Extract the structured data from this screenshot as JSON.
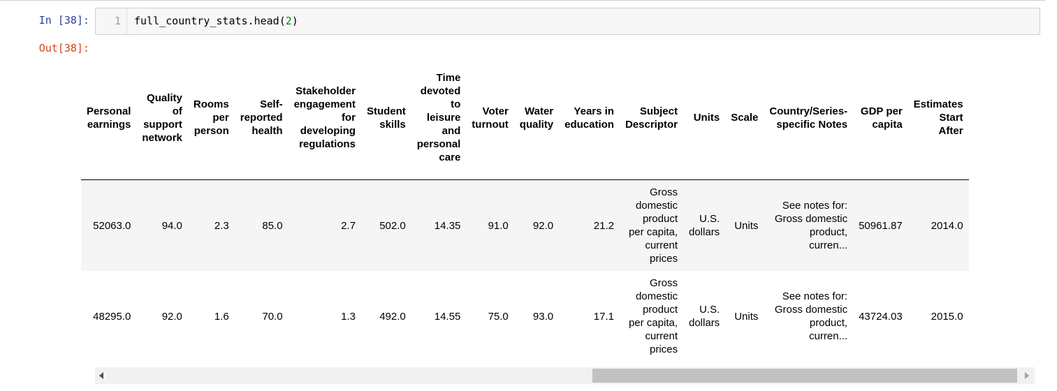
{
  "cell": {
    "in_prompt": "In [38]:",
    "out_prompt": "Out[38]:",
    "line_number": "1",
    "code": {
      "prefix": "full_country_stats.head",
      "open": "(",
      "arg": "2",
      "close": ")"
    }
  },
  "table": {
    "columns": [
      [
        "Personal",
        "earnings"
      ],
      [
        "Quality",
        "of",
        "support",
        "network"
      ],
      [
        "Rooms",
        "per",
        "person"
      ],
      [
        "Self-",
        "reported",
        "health"
      ],
      [
        "Stakeholder",
        "engagement",
        "for",
        "developing",
        "regulations"
      ],
      [
        "Student",
        "skills"
      ],
      [
        "Time",
        "devoted",
        "to",
        "leisure",
        "and",
        "personal",
        "care"
      ],
      [
        "Voter",
        "turnout"
      ],
      [
        "Water",
        "quality"
      ],
      [
        "Years in",
        "education"
      ],
      [
        "Subject",
        "Descriptor"
      ],
      [
        "Units"
      ],
      [
        "Scale"
      ],
      [
        "Country/Series-",
        "specific Notes"
      ],
      [
        "GDP per",
        "capita"
      ],
      [
        "Estimates",
        "Start",
        "After"
      ]
    ],
    "rows": [
      [
        "52063.0",
        "94.0",
        "2.3",
        "85.0",
        "2.7",
        "502.0",
        "14.35",
        "91.0",
        "92.0",
        "21.2",
        [
          "Gross",
          "domestic",
          "product",
          "per capita,",
          "current",
          "prices"
        ],
        [
          "U.S.",
          "dollars"
        ],
        "Units",
        [
          "See notes for:",
          "Gross domestic",
          "product,",
          "curren..."
        ],
        "50961.87",
        "2014.0"
      ],
      [
        "48295.0",
        "92.0",
        "1.6",
        "70.0",
        "1.3",
        "492.0",
        "14.55",
        "75.0",
        "93.0",
        "17.1",
        [
          "Gross",
          "domestic",
          "product",
          "per capita,",
          "current",
          "prices"
        ],
        [
          "U.S.",
          "dollars"
        ],
        "Units",
        [
          "See notes for:",
          "Gross domestic",
          "product,",
          "curren..."
        ],
        "43724.03",
        "2015.0"
      ]
    ]
  },
  "icons": {
    "scroll_left": "left-arrow-icon",
    "scroll_right": "right-arrow-icon"
  },
  "colors": {
    "in_prompt": "#303f9f",
    "out_prompt": "#d84315",
    "number_literal": "#008800",
    "row_stripe": "#f5f5f5"
  }
}
